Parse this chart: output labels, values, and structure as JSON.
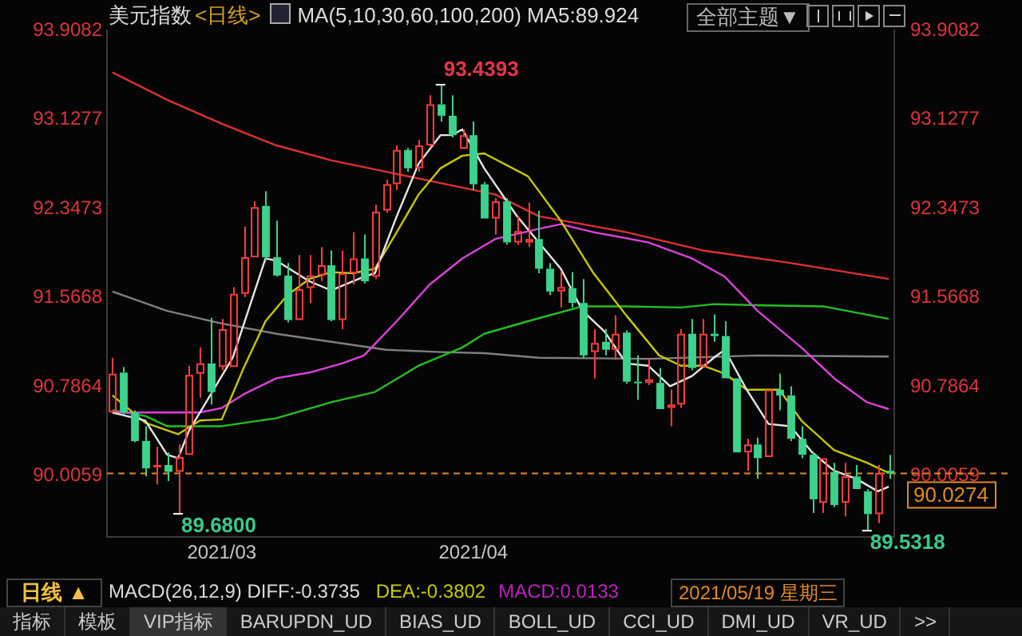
{
  "chart_data": {
    "type": "candlestick",
    "title": "美元指数",
    "subtitle": "<日线>",
    "categories": [
      null,
      null,
      null,
      null,
      null,
      null,
      null,
      null,
      null,
      null,
      "2021/03",
      null,
      null,
      null,
      null,
      null,
      null,
      null,
      null,
      null,
      null,
      null,
      null,
      null,
      null,
      null,
      null,
      null,
      null,
      null,
      null,
      null,
      null,
      "2021/04",
      null,
      null,
      null,
      null,
      null,
      null,
      null,
      null,
      null,
      null,
      null,
      null,
      null,
      null,
      null,
      null,
      null,
      null,
      null,
      null,
      null,
      null,
      null,
      null,
      null,
      null,
      null,
      null,
      null,
      null,
      null,
      null,
      null,
      null,
      null,
      null,
      null,
      null
    ],
    "ohlc": [
      [
        90.56,
        91.04,
        90.56,
        90.9
      ],
      [
        90.91,
        90.96,
        90.54,
        90.56
      ],
      [
        90.56,
        90.58,
        90.3,
        90.31
      ],
      [
        90.31,
        90.44,
        90.0,
        90.07
      ],
      [
        90.08,
        90.26,
        89.93,
        90.1
      ],
      [
        90.1,
        90.21,
        89.96,
        90.04
      ],
      [
        90.04,
        90.28,
        89.68,
        90.17
      ],
      [
        90.19,
        90.97,
        90.19,
        90.89
      ],
      [
        90.9,
        91.13,
        90.69,
        90.99
      ],
      [
        90.99,
        91.39,
        90.63,
        90.74
      ],
      [
        90.96,
        91.38,
        90.93,
        91.29
      ],
      [
        90.96,
        91.66,
        90.96,
        91.6
      ],
      [
        91.6,
        92.19,
        91.57,
        91.92
      ],
      [
        91.92,
        92.41,
        91.92,
        92.36
      ],
      [
        92.37,
        92.5,
        91.89,
        91.92
      ],
      [
        91.92,
        92.24,
        91.75,
        91.76
      ],
      [
        91.76,
        91.87,
        91.35,
        91.37
      ],
      [
        91.37,
        91.94,
        91.37,
        91.64
      ],
      [
        91.65,
        91.94,
        91.52,
        91.76
      ],
      [
        91.76,
        92.01,
        91.71,
        91.85
      ],
      [
        91.85,
        91.98,
        91.36,
        91.37
      ],
      [
        91.37,
        91.98,
        91.29,
        91.78
      ],
      [
        91.78,
        92.14,
        91.68,
        91.91
      ],
      [
        91.91,
        92.12,
        91.69,
        91.71
      ],
      [
        91.75,
        92.38,
        91.73,
        92.32
      ],
      [
        92.33,
        92.6,
        92.31,
        92.56
      ],
      [
        92.56,
        92.9,
        92.51,
        92.86
      ],
      [
        92.86,
        92.88,
        92.67,
        92.7
      ],
      [
        92.7,
        92.95,
        92.67,
        92.9
      ],
      [
        92.9,
        93.34,
        92.88,
        93.26
      ],
      [
        93.26,
        93.4393,
        93.11,
        93.16
      ],
      [
        93.16,
        93.34,
        92.97,
        92.99
      ],
      [
        92.87,
        93.04,
        92.87,
        92.99
      ],
      [
        92.99,
        93.11,
        92.51,
        92.56
      ],
      [
        92.56,
        92.58,
        92.26,
        92.26
      ],
      [
        92.26,
        92.44,
        92.12,
        92.41
      ],
      [
        92.41,
        92.44,
        92.03,
        92.05
      ],
      [
        92.05,
        92.28,
        92.03,
        92.15
      ],
      [
        92.05,
        92.4,
        92.01,
        92.08
      ],
      [
        92.08,
        92.33,
        91.78,
        91.82
      ],
      [
        91.82,
        91.87,
        91.59,
        91.62
      ],
      [
        91.62,
        91.8,
        91.48,
        91.66
      ],
      [
        91.65,
        91.79,
        91.48,
        91.52
      ],
      [
        91.52,
        91.73,
        91.04,
        91.06
      ],
      [
        91.09,
        91.29,
        90.86,
        91.17
      ],
      [
        91.18,
        91.29,
        91.06,
        91.11
      ],
      [
        91.11,
        91.41,
        91.02,
        91.25
      ],
      [
        91.26,
        91.28,
        90.81,
        90.83
      ],
      [
        90.83,
        91.06,
        90.67,
        90.82
      ],
      [
        90.82,
        91.04,
        90.8,
        90.85
      ],
      [
        90.82,
        90.95,
        90.59,
        90.59
      ],
      [
        90.6,
        90.76,
        90.44,
        90.63
      ],
      [
        90.63,
        91.29,
        90.6,
        91.25
      ],
      [
        91.25,
        91.38,
        90.93,
        90.95
      ],
      [
        90.96,
        91.38,
        90.95,
        91.25
      ],
      [
        91.25,
        91.42,
        91.18,
        91.23
      ],
      [
        91.23,
        91.36,
        90.86,
        90.86
      ],
      [
        90.86,
        90.86,
        90.21,
        90.21
      ],
      [
        90.21,
        90.33,
        90.05,
        90.28
      ],
      [
        90.28,
        90.34,
        89.98,
        90.16
      ],
      [
        90.17,
        90.76,
        90.17,
        90.76
      ],
      [
        90.76,
        90.9,
        90.58,
        90.71
      ],
      [
        90.71,
        90.79,
        90.31,
        90.33
      ],
      [
        90.33,
        90.44,
        90.16,
        90.19
      ],
      [
        90.19,
        90.21,
        89.68,
        89.8
      ],
      [
        89.77,
        90.16,
        89.68,
        90.16
      ],
      [
        90.04,
        90.12,
        89.73,
        89.75
      ],
      [
        89.77,
        90.12,
        89.65,
        90.0
      ],
      [
        90.0,
        90.1,
        89.89,
        89.89
      ],
      [
        89.87,
        89.89,
        89.5318,
        89.67
      ],
      [
        89.67,
        90.1,
        89.59,
        90.03
      ],
      [
        90.05,
        90.19,
        89.98,
        90.0274
      ]
    ],
    "colors": [
      "#ff3c3c",
      "#3cd28c",
      "#3cd28c",
      "#3cd28c",
      "#ff3c3c",
      "#3cd28c",
      "#ff3c3c",
      "#ff3c3c",
      "#ff3c3c",
      "#3cd28c",
      "#ff3c3c",
      "#ff3c3c",
      "#ff3c3c",
      "#ff3c3c",
      "#3cd28c",
      "#3cd28c",
      "#3cd28c",
      "#ff3c3c",
      "#ff3c3c",
      "#ff3c3c",
      "#3cd28c",
      "#ff3c3c",
      "#ff3c3c",
      "#3cd28c",
      "#ff3c3c",
      "#ff3c3c",
      "#ff3c3c",
      "#3cd28c",
      "#ff3c3c",
      "#ff3c3c",
      "#3cd28c",
      "#3cd28c",
      "#ff3c3c",
      "#3cd28c",
      "#3cd28c",
      "#ff3c3c",
      "#3cd28c",
      "#ff3c3c",
      "#ff3c3c",
      "#3cd28c",
      "#3cd28c",
      "#ff3c3c",
      "#3cd28c",
      "#3cd28c",
      "#ff3c3c",
      "#3cd28c",
      "#ff3c3c",
      "#3cd28c",
      "#3cd28c",
      "#ff3c3c",
      "#3cd28c",
      "#ff3c3c",
      "#ff3c3c",
      "#3cd28c",
      "#ff3c3c",
      "#3cd28c",
      "#3cd28c",
      "#3cd28c",
      "#ff3c3c",
      "#3cd28c",
      "#ff3c3c",
      "#3cd28c",
      "#3cd28c",
      "#3cd28c",
      "#3cd28c",
      "#ff3c3c",
      "#3cd28c",
      "#ff3c3c",
      "#3cd28c",
      "#3cd28c",
      "#ff3c3c",
      "#3cd28c"
    ],
    "series": [
      {
        "type": "line",
        "color": "#e6e6e6",
        "values": [
          90.56,
          null,
          null,
          90.49,
          null,
          90.19,
          90.16,
          90.4,
          null,
          90.72,
          null,
          91.04,
          null,
          null,
          91.91,
          91.89,
          null,
          null,
          91.71,
          null,
          91.63,
          null,
          null,
          91.75,
          91.78,
          null,
          92.28,
          null,
          92.74,
          null,
          92.99,
          92.99,
          93.04,
          null,
          92.7,
          92.56,
          null,
          92.28,
          null,
          92.05,
          null,
          91.82,
          null,
          91.45,
          null,
          91.27,
          null,
          90.99,
          null,
          90.97,
          null,
          90.79,
          null,
          90.88,
          null,
          91.04,
          91.11,
          null,
          90.76,
          null,
          90.46,
          null,
          90.44,
          null,
          90.21,
          null,
          90.05,
          null,
          89.98,
          null,
          89.87,
          89.91
        ]
      },
      {
        "type": "line",
        "color": "#c8c800",
        "values": [
          90.71,
          null,
          null,
          90.47,
          null,
          null,
          90.37,
          null,
          90.49,
          null,
          90.5,
          null,
          90.95,
          null,
          91.36,
          null,
          91.59,
          null,
          91.73,
          null,
          91.79,
          null,
          91.78,
          null,
          91.82,
          null,
          92.14,
          null,
          92.47,
          null,
          92.7,
          null,
          92.81,
          null,
          92.83,
          null,
          null,
          null,
          92.63,
          null,
          null,
          92.24,
          null,
          null,
          91.78,
          null,
          null,
          91.41,
          null,
          null,
          91.06,
          null,
          90.97,
          null,
          90.97,
          null,
          90.9,
          null,
          90.76,
          null,
          null,
          90.76,
          null,
          90.49,
          null,
          null,
          90.23,
          null,
          null,
          90.12,
          null,
          90.03
        ]
      },
      {
        "type": "line",
        "color": "#e040e0",
        "values": [
          90.56,
          null,
          null,
          null,
          null,
          90.56,
          null,
          null,
          90.56,
          null,
          90.6,
          null,
          90.72,
          null,
          null,
          90.86,
          null,
          null,
          90.91,
          null,
          null,
          90.99,
          null,
          91.06,
          null,
          null,
          91.36,
          null,
          null,
          91.68,
          null,
          null,
          91.91,
          null,
          null,
          92.08,
          null,
          null,
          null,
          92.17,
          null,
          92.21,
          null,
          null,
          92.14,
          null,
          null,
          null,
          null,
          92.05,
          null,
          null,
          null,
          91.91,
          null,
          null,
          91.75,
          null,
          null,
          91.45,
          null,
          null,
          null,
          91.13,
          null,
          null,
          90.86,
          null,
          null,
          90.65,
          null,
          90.59
        ]
      },
      {
        "type": "line",
        "color": "#22c022",
        "values": [
          90.58,
          null,
          null,
          90.53,
          null,
          90.44,
          null,
          null,
          null,
          null,
          90.44,
          null,
          null,
          null,
          null,
          90.51,
          null,
          null,
          null,
          null,
          90.65,
          null,
          null,
          null,
          90.74,
          null,
          null,
          null,
          90.97,
          null,
          null,
          null,
          91.13,
          null,
          91.25,
          null,
          null,
          null,
          91.36,
          null,
          null,
          null,
          null,
          91.49,
          null,
          null,
          null,
          91.49,
          null,
          null,
          null,
          null,
          91.48,
          null,
          null,
          91.51,
          null,
          null,
          null,
          91.5,
          null,
          null,
          null,
          null,
          null,
          91.49,
          null,
          null,
          null,
          null,
          null,
          91.38
        ]
      },
      {
        "type": "line",
        "color": "#808080",
        "values": [
          91.62,
          null,
          null,
          null,
          null,
          91.45,
          null,
          null,
          null,
          null,
          91.34,
          null,
          null,
          null,
          null,
          91.25,
          null,
          null,
          null,
          null,
          91.18,
          null,
          null,
          null,
          null,
          91.11,
          null,
          null,
          null,
          null,
          91.09,
          null,
          null,
          null,
          91.08,
          null,
          null,
          null,
          null,
          91.04,
          null,
          null,
          null,
          null,
          null,
          null,
          null,
          null,
          null,
          91.03,
          null,
          null,
          null,
          null,
          null,
          null,
          null,
          null,
          null,
          91.06,
          null,
          null,
          null,
          null,
          null,
          null,
          null,
          null,
          null,
          null,
          null,
          91.05
        ]
      },
      {
        "type": "line",
        "color": "#e03030",
        "values": [
          93.54,
          null,
          null,
          null,
          null,
          93.3,
          null,
          null,
          null,
          null,
          93.09,
          null,
          null,
          null,
          null,
          92.9,
          null,
          null,
          null,
          null,
          92.77,
          null,
          null,
          null,
          null,
          92.67,
          null,
          null,
          null,
          null,
          92.57,
          null,
          null,
          null,
          null,
          92.47,
          null,
          null,
          null,
          92.28,
          null,
          null,
          null,
          null,
          null,
          null,
          null,
          92.14,
          null,
          null,
          null,
          null,
          null,
          null,
          91.98,
          null,
          null,
          null,
          null,
          null,
          null,
          null,
          91.87,
          null,
          null,
          null,
          null,
          null,
          null,
          null,
          null,
          91.73
        ]
      }
    ],
    "ylim": [
      89.47,
      93.9082
    ],
    "yticks": [
      93.9082,
      93.1277,
      92.3473,
      91.5668,
      90.7864,
      90.0059
    ],
    "y2lim": [
      89.47,
      93.9082
    ],
    "y2ticks": [
      93.9082,
      93.1277,
      92.3473,
      91.5668,
      90.7864,
      90.0059
    ],
    "ref_lines": [
      {
        "axis": "y",
        "value": 90.0274,
        "label": "90.0274",
        "color": "#e08a20",
        "line_style": "dashed"
      }
    ],
    "annotations": [
      "MA(5,10,30,60,100,200)  MA5:89.924",
      "全部主题▼",
      "MACD(26,12,9) DIFF:-0.3735",
      "DEA:-0.3802",
      "MACD:0.0133",
      "日线 ▲",
      "2021/05/19 星期三",
      "指标",
      "模板",
      "VIP指标",
      "BARUPDN_UD",
      "BIAS_UD",
      "BOLL_UD",
      "CCI_UD",
      "DMI_UD",
      "VR_UD",
      ">>",
      "93.4393",
      "89.6800",
      "89.5318"
    ]
  }
}
